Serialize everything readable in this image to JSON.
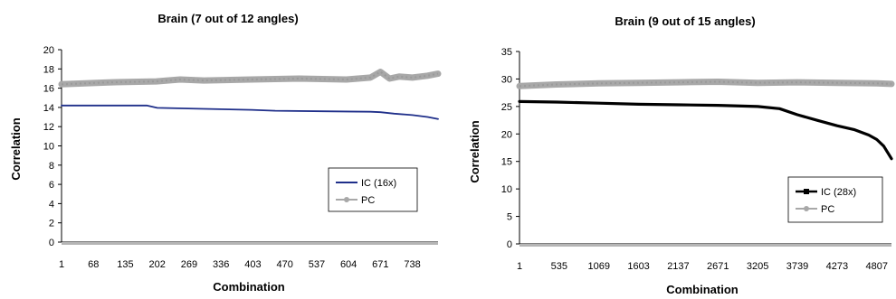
{
  "chart_data": [
    {
      "type": "line",
      "title": "Brain (7 out of 12 angles)",
      "xlabel": "Combination",
      "ylabel": "Correlation",
      "ylim": [
        0,
        20
      ],
      "yticks": [
        "0",
        "2",
        "4",
        "6",
        "8",
        "10",
        "12",
        "14",
        "16",
        "18",
        "20"
      ],
      "xlim": [
        1,
        792
      ],
      "xticks": [
        1,
        68,
        135,
        202,
        269,
        336,
        403,
        470,
        537,
        604,
        671,
        738
      ],
      "xtick_labels": [
        "1",
        "68",
        "135",
        "202",
        "269",
        "336",
        "403",
        "470",
        "537",
        "604",
        "671",
        "738"
      ],
      "grid": false,
      "legend": "bottom-right",
      "series": [
        {
          "name": "IC (16x)",
          "color": "#1f2f8a",
          "style": "solid",
          "x": [
            1,
            100,
            180,
            202,
            300,
            400,
            450,
            550,
            650,
            671,
            700,
            738,
            770,
            792
          ],
          "y": [
            14.2,
            14.2,
            14.2,
            13.95,
            13.85,
            13.75,
            13.65,
            13.6,
            13.55,
            13.5,
            13.35,
            13.2,
            13.0,
            12.8
          ]
        },
        {
          "name": "PC",
          "color": "#a8a8a8",
          "style": "thick-markers",
          "x": [
            1,
            100,
            200,
            250,
            300,
            400,
            500,
            600,
            650,
            671,
            690,
            710,
            738,
            770,
            792
          ],
          "y": [
            16.4,
            16.6,
            16.7,
            16.9,
            16.8,
            16.9,
            17.0,
            16.9,
            17.1,
            17.7,
            17.0,
            17.2,
            17.1,
            17.3,
            17.5
          ]
        }
      ]
    },
    {
      "type": "line",
      "title": "Brain (9 out of 15 angles)",
      "xlabel": "Combination",
      "ylabel": "Correlation",
      "ylim": [
        0,
        35
      ],
      "yticks": [
        "0",
        "5",
        "10",
        "15",
        "20",
        "25",
        "30",
        "35"
      ],
      "xlim": [
        1,
        5005
      ],
      "xticks": [
        1,
        535,
        1069,
        1603,
        2137,
        2671,
        3205,
        3739,
        4273,
        4807
      ],
      "xtick_labels": [
        "1",
        "535",
        "1069",
        "1603",
        "2137",
        "2671",
        "3205",
        "3739",
        "4273",
        "4807"
      ],
      "grid": false,
      "legend": "bottom-right",
      "series": [
        {
          "name": "IC (28x)",
          "color": "#000000",
          "style": "thick-markers",
          "x": [
            1,
            500,
            1069,
            1603,
            2137,
            2671,
            3205,
            3500,
            3739,
            4000,
            4273,
            4500,
            4700,
            4807,
            4900,
            5005
          ],
          "y": [
            25.9,
            25.8,
            25.6,
            25.4,
            25.3,
            25.2,
            25.0,
            24.6,
            23.5,
            22.5,
            21.5,
            20.8,
            19.8,
            19.0,
            17.8,
            15.5
          ]
        },
        {
          "name": "PC",
          "color": "#a8a8a8",
          "style": "thick-markers",
          "x": [
            1,
            500,
            1069,
            1603,
            2137,
            2671,
            3205,
            3739,
            4273,
            4807,
            5005
          ],
          "y": [
            28.7,
            29.0,
            29.2,
            29.3,
            29.4,
            29.5,
            29.3,
            29.4,
            29.3,
            29.2,
            29.1
          ]
        }
      ]
    }
  ]
}
